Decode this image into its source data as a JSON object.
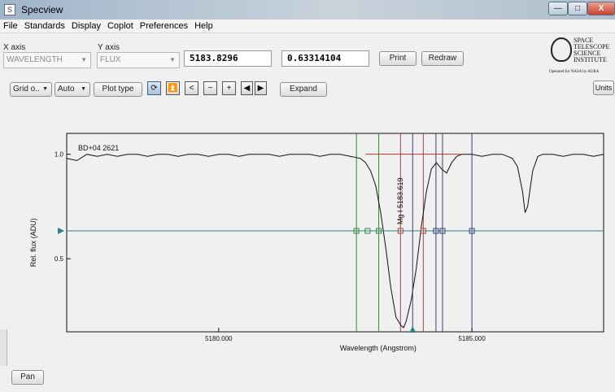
{
  "window": {
    "title": "Specview",
    "minimize_glyph": "—",
    "maximize_glyph": "□",
    "close_glyph": "X"
  },
  "menu": [
    "File",
    "Standards",
    "Display",
    "Coplot",
    "Preferences",
    "Help"
  ],
  "axes": {
    "x_label": "X axis",
    "x_value": "WAVELENGTH",
    "y_label": "Y axis",
    "y_value": "FLUX"
  },
  "readouts": {
    "wavelength": "5183.8296",
    "flux": "0.63314104"
  },
  "buttons": {
    "print": "Print",
    "redraw": "Redraw",
    "grid": "Grid o..",
    "auto": "Auto",
    "plot_type": "Plot type",
    "expand": "Expand",
    "units": "Units",
    "pan": "Pan"
  },
  "logo": {
    "lines": [
      "SPACE",
      "TELESCOPE",
      "SCIENCE",
      "INSTITUTE"
    ],
    "sub": "Operated for NASA by AURA"
  },
  "icons": {
    "grid_dropdown": "chevron-down-icon",
    "auto_dropdown": "chevron-down-icon",
    "refresh": "refresh-icon",
    "top": "top-icon",
    "back": "back-icon",
    "zoom_out": "zoom-out-icon",
    "zoom_in": "zoom-in-icon",
    "prev": "prev-icon",
    "next": "next-icon"
  },
  "colors": {
    "spectrum": "#111111",
    "crosshair": "#2f7f8f",
    "green_markers": "#2e8b2e",
    "red_markers": "#b04040",
    "blue_markers": "#3a3f7a",
    "continuum": "#c03030"
  },
  "chart_data": {
    "type": "line",
    "object_label": "BD+04 2621",
    "line_label": "Mg I 5183.619",
    "xlabel": "Wavelength (Angstrom)",
    "ylabel": "Rel. flux (ADU)",
    "xlim": [
      5177.0,
      5187.6
    ],
    "ylim": [
      0.15,
      1.1
    ],
    "xticks": [
      {
        "value": 5180.0,
        "label": "5180.000"
      },
      {
        "value": 5185.0,
        "label": "5185.000"
      }
    ],
    "yticks": [
      {
        "value": 0.5,
        "label": "0.5"
      },
      {
        "value": 1.0,
        "label": "1.0"
      }
    ],
    "crosshair": {
      "x": 5183.8296,
      "y": 0.63314104
    },
    "green_lines": [
      5182.72,
      5183.16
    ],
    "red_lines": [
      5183.59,
      5184.04
    ],
    "blue_lines": [
      5184.29,
      5184.42,
      5185.0
    ],
    "continuum_segment": {
      "x": [
        5182.9,
        5184.8
      ],
      "y": [
        1.0,
        1.0
      ]
    },
    "spectrum": {
      "x": [
        5177.0,
        5177.2,
        5177.4,
        5177.6,
        5177.8,
        5178.0,
        5178.2,
        5178.4,
        5178.6,
        5178.8,
        5179.0,
        5179.2,
        5179.4,
        5179.6,
        5179.8,
        5180.0,
        5180.2,
        5180.4,
        5180.6,
        5180.8,
        5181.0,
        5181.2,
        5181.4,
        5181.6,
        5181.8,
        5182.0,
        5182.2,
        5182.4,
        5182.6,
        5182.8,
        5182.9,
        5183.0,
        5183.1,
        5183.2,
        5183.3,
        5183.4,
        5183.5,
        5183.6,
        5183.65,
        5183.7,
        5183.8,
        5183.9,
        5184.0,
        5184.1,
        5184.2,
        5184.3,
        5184.4,
        5184.5,
        5184.6,
        5184.7,
        5184.8,
        5185.0,
        5185.2,
        5185.4,
        5185.6,
        5185.8,
        5185.9,
        5186.0,
        5186.05,
        5186.1,
        5186.2,
        5186.3,
        5186.4,
        5186.6,
        5186.8,
        5187.0,
        5187.2,
        5187.4,
        5187.6
      ],
      "y": [
        0.98,
        0.97,
        1.0,
        0.99,
        1.0,
        0.99,
        1.0,
        1.0,
        0.99,
        1.0,
        1.0,
        0.99,
        1.0,
        1.0,
        0.99,
        1.0,
        1.0,
        0.99,
        1.0,
        1.0,
        1.0,
        0.99,
        1.0,
        1.0,
        1.0,
        0.99,
        1.0,
        1.0,
        0.99,
        0.98,
        0.96,
        0.92,
        0.85,
        0.72,
        0.55,
        0.36,
        0.22,
        0.18,
        0.17,
        0.2,
        0.3,
        0.45,
        0.65,
        0.82,
        0.93,
        0.96,
        0.93,
        0.91,
        0.96,
        0.99,
        1.0,
        1.0,
        0.99,
        1.0,
        1.0,
        0.98,
        0.94,
        0.82,
        0.72,
        0.75,
        0.92,
        0.99,
        1.0,
        1.0,
        0.99,
        1.0,
        1.0,
        0.99,
        1.0
      ]
    }
  }
}
